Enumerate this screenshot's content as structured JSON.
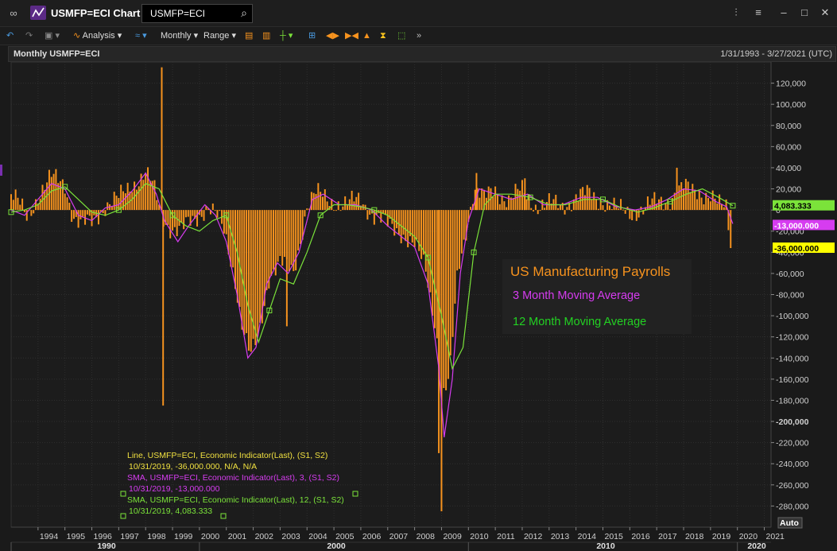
{
  "window": {
    "title": "USMFP=ECI Chart",
    "search_value": "USMFP=ECI"
  },
  "toolbar": {
    "analysis_label": "Analysis",
    "frequency_label": "Monthly",
    "range_label": "Range"
  },
  "chart_header": {
    "title": "Monthly USMFP=ECI",
    "range": "1/31/1993 - 3/27/2021 (UTC)"
  },
  "colors": {
    "bars": "#f7931e",
    "sma3": "#d63cf0",
    "sma12": "#7be33a",
    "background": "#1a1a1a"
  },
  "chart_data": {
    "type": "bar",
    "title": "US Manufacturing Payrolls",
    "annotations": [
      "US Manufacturing Payrolls",
      "3 Month Moving Average",
      "12 Month Moving Average"
    ],
    "ylim": [
      -300000,
      140000
    ],
    "yticks": [
      120000,
      100000,
      80000,
      60000,
      40000,
      20000,
      0,
      -20000,
      -40000,
      -60000,
      -80000,
      -100000,
      -120000,
      -140000,
      -160000,
      -180000,
      -200000,
      -220000,
      -240000,
      -260000,
      -280000
    ],
    "ytick_labels": [
      "120,000",
      "100,000",
      "80,000",
      "60,000",
      "40,000",
      "20,000",
      "0",
      "-20,000",
      "-40,000",
      "-60,000",
      "-80,000",
      "-100,000",
      "-120,000",
      "-140,000",
      "-160,000",
      "-180,000",
      "-200,000",
      "-220,000",
      "-240,000",
      "-260,000",
      "-280,000"
    ],
    "xlim": [
      1993.0,
      2021.25
    ],
    "year_ticks": [
      1994,
      1995,
      1996,
      1997,
      1998,
      1999,
      2000,
      2001,
      2002,
      2003,
      2004,
      2005,
      2006,
      2007,
      2008,
      2009,
      2010,
      2011,
      2012,
      2013,
      2014,
      2015,
      2016,
      2017,
      2018,
      2019,
      2020,
      2021
    ],
    "decade_labels": [
      {
        "x": 1990,
        "label": "1990"
      },
      {
        "x": 2000,
        "label": "2000"
      },
      {
        "x": 2010,
        "label": "2010"
      },
      {
        "x": 2020,
        "label": "2020"
      }
    ],
    "value_tags": [
      {
        "value": 4083.333,
        "label": "4,083.333",
        "color": "#7be33a"
      },
      {
        "value": -13000,
        "label": "-13,000.000",
        "color": "#d63cf0"
      },
      {
        "value": -36000,
        "label": "-36,000.000",
        "color": "#ffff00"
      }
    ],
    "series": [
      {
        "name": "Monthly USMFP=ECI",
        "style": "bar",
        "color": "#f7931e",
        "anchors": [
          [
            1993.0,
            15000
          ],
          [
            1993.3,
            5000
          ],
          [
            1993.6,
            -8000
          ],
          [
            1994.0,
            15000
          ],
          [
            1994.5,
            30000
          ],
          [
            1995.0,
            25000
          ],
          [
            1995.3,
            -5000
          ],
          [
            1995.6,
            -15000
          ],
          [
            1996.0,
            -12000
          ],
          [
            1996.5,
            5000
          ],
          [
            1997.0,
            10000
          ],
          [
            1997.5,
            25000
          ],
          [
            1998.0,
            35000
          ],
          [
            1998.3,
            20000
          ],
          [
            1998.6,
            -5000
          ],
          [
            1998.9,
            -15000
          ],
          [
            1999.3,
            -20000
          ],
          [
            1999.8,
            -10000
          ],
          [
            2000.3,
            5000
          ],
          [
            2000.6,
            -5000
          ],
          [
            2000.9,
            -20000
          ],
          [
            2001.3,
            -60000
          ],
          [
            2001.6,
            -110000
          ],
          [
            2001.9,
            -140000
          ],
          [
            2002.2,
            -120000
          ],
          [
            2002.6,
            -60000
          ],
          [
            2003.0,
            -50000
          ],
          [
            2003.5,
            -60000
          ],
          [
            2004.0,
            5000
          ],
          [
            2004.3,
            15000
          ],
          [
            2004.8,
            10000
          ],
          [
            2005.5,
            5000
          ],
          [
            2006.0,
            10000
          ],
          [
            2006.5,
            -5000
          ],
          [
            2007.0,
            -15000
          ],
          [
            2007.5,
            -20000
          ],
          [
            2008.0,
            -35000
          ],
          [
            2008.4,
            -55000
          ],
          [
            2008.8,
            -110000
          ],
          [
            2009.0,
            -180000
          ],
          [
            2009.3,
            -160000
          ],
          [
            2009.6,
            -60000
          ],
          [
            2009.9,
            -20000
          ],
          [
            2010.2,
            20000
          ],
          [
            2010.6,
            10000
          ],
          [
            2011.0,
            20000
          ],
          [
            2011.5,
            10000
          ],
          [
            2012.0,
            18000
          ],
          [
            2012.5,
            5000
          ],
          [
            2013.0,
            5000
          ],
          [
            2013.5,
            5000
          ],
          [
            2014.0,
            12000
          ],
          [
            2014.5,
            15000
          ],
          [
            2015.0,
            10000
          ],
          [
            2015.5,
            0
          ],
          [
            2016.0,
            -2000
          ],
          [
            2016.5,
            0
          ],
          [
            2017.0,
            8000
          ],
          [
            2017.5,
            12000
          ],
          [
            2018.0,
            20000
          ],
          [
            2018.5,
            20000
          ],
          [
            2019.0,
            12000
          ],
          [
            2019.3,
            3000
          ],
          [
            2019.6,
            4000
          ],
          [
            2019.75,
            -36000
          ]
        ],
        "spikes": [
          [
            1998.6,
            135000
          ],
          [
            1998.65,
            -185000
          ],
          [
            2009.0,
            -285000
          ],
          [
            2008.9,
            -230000
          ],
          [
            2003.25,
            -110000
          ],
          [
            2017.75,
            40000
          ],
          [
            2012.1,
            30000
          ],
          [
            2010.3,
            35000
          ]
        ]
      },
      {
        "name": "SMA 3",
        "style": "line",
        "color": "#d63cf0",
        "points": [
          [
            1993.0,
            0
          ],
          [
            1993.5,
            -5000
          ],
          [
            1994.0,
            10000
          ],
          [
            1994.5,
            25000
          ],
          [
            1995.0,
            20000
          ],
          [
            1995.5,
            -5000
          ],
          [
            1996.0,
            -10000
          ],
          [
            1996.5,
            2000
          ],
          [
            1997.0,
            5000
          ],
          [
            1997.5,
            18000
          ],
          [
            1998.0,
            35000
          ],
          [
            1998.4,
            15000
          ],
          [
            1998.7,
            -10000
          ],
          [
            1999.2,
            -30000
          ],
          [
            1999.6,
            -15000
          ],
          [
            2000.2,
            5000
          ],
          [
            2000.6,
            -5000
          ],
          [
            2001.0,
            -30000
          ],
          [
            2001.4,
            -80000
          ],
          [
            2001.8,
            -140000
          ],
          [
            2002.1,
            -130000
          ],
          [
            2002.5,
            -70000
          ],
          [
            2002.9,
            -50000
          ],
          [
            2003.3,
            -60000
          ],
          [
            2003.7,
            -40000
          ],
          [
            2004.2,
            10000
          ],
          [
            2004.6,
            15000
          ],
          [
            2005.2,
            5000
          ],
          [
            2005.8,
            5000
          ],
          [
            2006.4,
            0
          ],
          [
            2007.0,
            -15000
          ],
          [
            2007.5,
            -25000
          ],
          [
            2008.0,
            -35000
          ],
          [
            2008.5,
            -70000
          ],
          [
            2008.9,
            -150000
          ],
          [
            2009.1,
            -215000
          ],
          [
            2009.4,
            -160000
          ],
          [
            2009.7,
            -60000
          ],
          [
            2010.0,
            -10000
          ],
          [
            2010.4,
            20000
          ],
          [
            2011.0,
            15000
          ],
          [
            2011.6,
            10000
          ],
          [
            2012.2,
            15000
          ],
          [
            2012.8,
            5000
          ],
          [
            2013.5,
            5000
          ],
          [
            2014.2,
            12000
          ],
          [
            2014.8,
            12000
          ],
          [
            2015.5,
            3000
          ],
          [
            2016.2,
            0
          ],
          [
            2016.8,
            3000
          ],
          [
            2017.4,
            10000
          ],
          [
            2018.0,
            20000
          ],
          [
            2018.6,
            18000
          ],
          [
            2019.2,
            8000
          ],
          [
            2019.6,
            3000
          ],
          [
            2019.83,
            -13000
          ]
        ]
      },
      {
        "name": "SMA 12",
        "style": "line",
        "color": "#7be33a",
        "points": [
          [
            1993.0,
            -2000
          ],
          [
            1993.5,
            0
          ],
          [
            1994.0,
            5000
          ],
          [
            1994.5,
            18000
          ],
          [
            1995.0,
            22000
          ],
          [
            1995.5,
            10000
          ],
          [
            1996.0,
            -2000
          ],
          [
            1996.5,
            -5000
          ],
          [
            1997.0,
            0
          ],
          [
            1997.5,
            10000
          ],
          [
            1998.0,
            25000
          ],
          [
            1998.5,
            20000
          ],
          [
            1999.0,
            -5000
          ],
          [
            1999.5,
            -15000
          ],
          [
            2000.0,
            -20000
          ],
          [
            2000.5,
            -10000
          ],
          [
            2001.0,
            -5000
          ],
          [
            2001.4,
            -40000
          ],
          [
            2001.8,
            -90000
          ],
          [
            2002.2,
            -125000
          ],
          [
            2002.6,
            -95000
          ],
          [
            2003.0,
            -65000
          ],
          [
            2003.5,
            -70000
          ],
          [
            2004.0,
            -40000
          ],
          [
            2004.5,
            -5000
          ],
          [
            2005.0,
            5000
          ],
          [
            2005.5,
            5000
          ],
          [
            2006.0,
            3000
          ],
          [
            2006.5,
            0
          ],
          [
            2007.0,
            -5000
          ],
          [
            2007.5,
            -15000
          ],
          [
            2008.0,
            -25000
          ],
          [
            2008.5,
            -45000
          ],
          [
            2009.0,
            -100000
          ],
          [
            2009.4,
            -150000
          ],
          [
            2009.8,
            -130000
          ],
          [
            2010.2,
            -40000
          ],
          [
            2010.6,
            5000
          ],
          [
            2011.0,
            15000
          ],
          [
            2011.6,
            15000
          ],
          [
            2012.3,
            12000
          ],
          [
            2013.0,
            5000
          ],
          [
            2013.6,
            5000
          ],
          [
            2014.3,
            10000
          ],
          [
            2015.0,
            10000
          ],
          [
            2015.6,
            3000
          ],
          [
            2016.3,
            -2000
          ],
          [
            2016.9,
            2000
          ],
          [
            2017.5,
            8000
          ],
          [
            2018.1,
            15000
          ],
          [
            2018.7,
            20000
          ],
          [
            2019.3,
            12000
          ],
          [
            2019.83,
            4083.333
          ]
        ]
      }
    ],
    "legend_entries": [
      {
        "line1": "Line, USMFP=ECI, Economic Indicator(Last), (S1, S2)",
        "line2": "10/31/2019, -36,000.000, N/A, N/A",
        "color": "#f0e040"
      },
      {
        "line1": "SMA, USMFP=ECI, Economic Indicator(Last),  3, (S1, S2)",
        "line2": "10/31/2019, -13,000.000",
        "color": "#d63cf0"
      },
      {
        "line1": "SMA, USMFP=ECI, Economic Indicator(Last),  12, (S1, S2)",
        "line2": "10/31/2019, 4,083.333",
        "color": "#7be33a"
      }
    ],
    "auto_label": "Auto"
  }
}
